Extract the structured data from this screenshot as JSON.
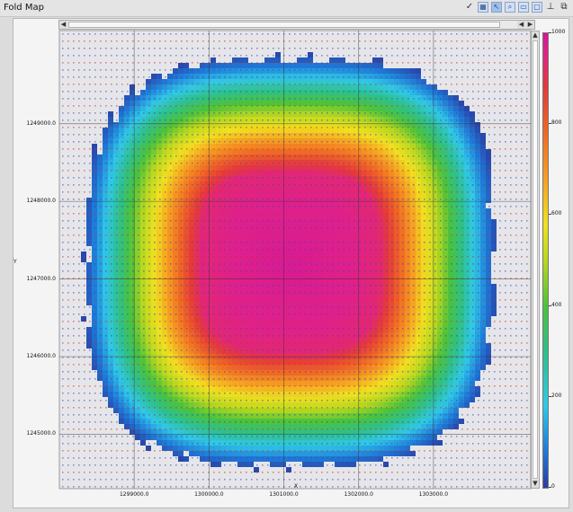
{
  "window": {
    "title": "Fold Map"
  },
  "toolbar": {
    "icons": [
      "check-icon",
      "grid-icon",
      "select-icon",
      "zoom-icon",
      "display-icon",
      "frame-icon",
      "pin-icon",
      "dock-icon"
    ]
  },
  "chart_data": {
    "type": "heatmap",
    "xlabel": "X",
    "ylabel": "Y",
    "x_ticks": [
      "1299000.0",
      "1300000.0",
      "1301000.0",
      "1302000.0",
      "1303000.0"
    ],
    "y_ticks": [
      "1245000.0",
      "1246000.0",
      "1247000.0",
      "1248000.0",
      "1249000.0"
    ],
    "xlim": [
      1298000,
      1304300
    ],
    "ylim": [
      1244300,
      1250200
    ],
    "colorbar": {
      "ticks": [
        "1000",
        "800",
        "600",
        "400",
        "200",
        "0"
      ],
      "range": [
        0,
        1000
      ],
      "colors": [
        "#2b3aa0",
        "#1f7ad8",
        "#30c8e8",
        "#2ec08a",
        "#4cc23a",
        "#b8d820",
        "#f0e020",
        "#f5a022",
        "#f06a24",
        "#e43a3a",
        "#e0208a",
        "#d41896"
      ]
    },
    "fold_field": {
      "center_x": 1301050,
      "center_y": 1247250,
      "max_fold": 1000,
      "note": "fold coverage falls off radially from a central plateau"
    },
    "grid": true,
    "station_markers": true
  }
}
